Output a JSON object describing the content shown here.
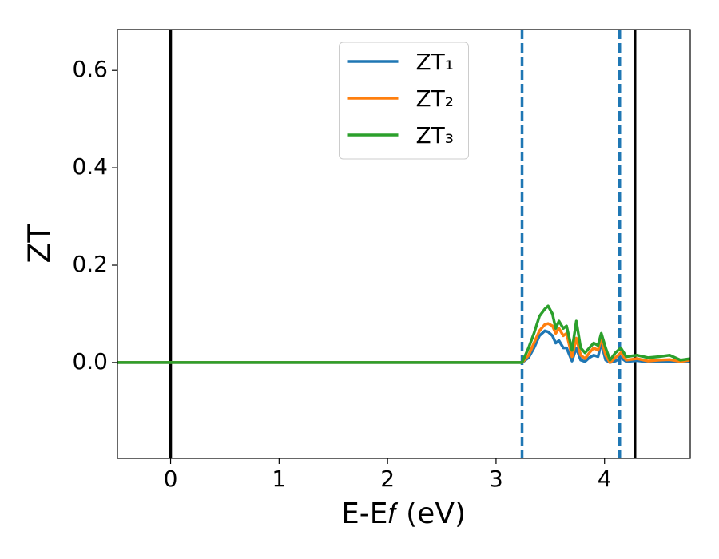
{
  "chart_data": {
    "type": "line",
    "xlabel": "E-E𝑓 (eV)",
    "ylabel": "ZT",
    "x": [
      -0.49,
      3.24,
      3.3,
      3.35,
      3.4,
      3.45,
      3.48,
      3.52,
      3.55,
      3.58,
      3.62,
      3.65,
      3.7,
      3.74,
      3.78,
      3.82,
      3.86,
      3.9,
      3.94,
      3.97,
      4.01,
      4.05,
      4.1,
      4.15,
      4.2,
      4.3,
      4.4,
      4.5,
      4.6,
      4.7,
      4.79
    ],
    "series": [
      {
        "name": "ZT₁",
        "color": "#1f77b4",
        "values": [
          0,
          0,
          0.01,
          0.03,
          0.055,
          0.065,
          0.063,
          0.055,
          0.04,
          0.045,
          0.03,
          0.03,
          0.003,
          0.03,
          0.005,
          0.002,
          0.01,
          0.015,
          0.012,
          0.04,
          0.005,
          0,
          0.003,
          0.01,
          0.002,
          0.004,
          0.001,
          0.002,
          0.003,
          0.001,
          0.002
        ]
      },
      {
        "name": "ZT₂",
        "color": "#ff7f0e",
        "values": [
          0,
          0,
          0.015,
          0.04,
          0.065,
          0.078,
          0.08,
          0.075,
          0.06,
          0.07,
          0.055,
          0.06,
          0.012,
          0.05,
          0.015,
          0.008,
          0.02,
          0.03,
          0.025,
          0.05,
          0.015,
          0,
          0.01,
          0.02,
          0.005,
          0.008,
          0.003,
          0.005,
          0.006,
          0.002,
          0.005
        ]
      },
      {
        "name": "ZT₃",
        "color": "#2ca02c",
        "values": [
          0,
          0,
          0.03,
          0.06,
          0.095,
          0.11,
          0.116,
          0.1,
          0.07,
          0.085,
          0.07,
          0.075,
          0.025,
          0.085,
          0.03,
          0.02,
          0.03,
          0.04,
          0.035,
          0.06,
          0.03,
          0.005,
          0.02,
          0.03,
          0.012,
          0.015,
          0.01,
          0.012,
          0.015,
          0.005,
          0.008
        ]
      }
    ],
    "vlines": [
      {
        "x": 0,
        "color": "#000000",
        "style": "solid"
      },
      {
        "x": 3.24,
        "color": "#1f77b4",
        "style": "dashed"
      },
      {
        "x": 4.14,
        "color": "#1f77b4",
        "style": "dashed"
      },
      {
        "x": 4.28,
        "color": "#000000",
        "style": "solid"
      }
    ],
    "xlim": [
      -0.49,
      4.79
    ],
    "ylim": [
      -0.197,
      0.684
    ],
    "xticks": [
      0,
      1,
      2,
      3,
      4
    ],
    "yticks": [
      {
        "value": 0,
        "label": "0.0"
      },
      0.2,
      0.4,
      0.6
    ],
    "grid": false,
    "legend": "upper center"
  }
}
